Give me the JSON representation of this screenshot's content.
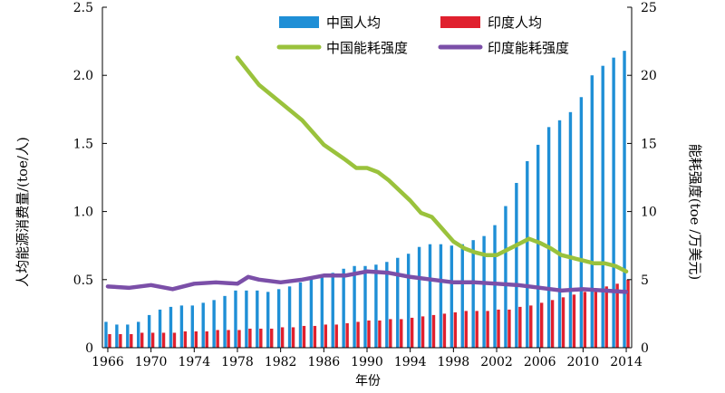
{
  "chart_data": {
    "type": "bar",
    "xlabel": "年份",
    "ylabel_left": "人均能源消费量/(toe/人)",
    "ylabel_right": "能耗强度(toe /万美元)",
    "ylim_left": [
      0,
      2.5
    ],
    "ylim_right": [
      0,
      25
    ],
    "yticks_left": [
      "0",
      "0.5",
      "1.0",
      "1.5",
      "2.0",
      "2.5"
    ],
    "yticks_right": [
      "0",
      "5",
      "10",
      "15",
      "20",
      "25"
    ],
    "xticks": [
      "1966",
      "1970",
      "1974",
      "1978",
      "1982",
      "1986",
      "1990",
      "1994",
      "1998",
      "2002",
      "2006",
      "2010",
      "2014"
    ],
    "xrange": [
      1966,
      2014
    ],
    "legend_position": "top",
    "grid": false,
    "bar_series": [
      {
        "name": "中国人均",
        "color": "#1f8fd6",
        "axis": "left",
        "x": [
          1966,
          1967,
          1968,
          1969,
          1970,
          1971,
          1972,
          1973,
          1974,
          1975,
          1976,
          1977,
          1978,
          1979,
          1980,
          1981,
          1982,
          1983,
          1984,
          1985,
          1986,
          1987,
          1988,
          1989,
          1990,
          1991,
          1992,
          1993,
          1994,
          1995,
          1996,
          1997,
          1998,
          1999,
          2000,
          2001,
          2002,
          2003,
          2004,
          2005,
          2006,
          2007,
          2008,
          2009,
          2010,
          2011,
          2012,
          2013,
          2014
        ],
        "values": [
          0.19,
          0.17,
          0.17,
          0.19,
          0.24,
          0.28,
          0.3,
          0.31,
          0.31,
          0.33,
          0.35,
          0.38,
          0.42,
          0.42,
          0.42,
          0.41,
          0.43,
          0.45,
          0.48,
          0.5,
          0.52,
          0.55,
          0.58,
          0.6,
          0.6,
          0.61,
          0.63,
          0.66,
          0.69,
          0.74,
          0.76,
          0.76,
          0.75,
          0.76,
          0.79,
          0.82,
          0.9,
          1.04,
          1.21,
          1.37,
          1.49,
          1.62,
          1.67,
          1.73,
          1.84,
          2.0,
          2.07,
          2.13,
          2.18
        ]
      },
      {
        "name": "印度人均",
        "color": "#e0202e",
        "axis": "left",
        "x": [
          1966,
          1967,
          1968,
          1969,
          1970,
          1971,
          1972,
          1973,
          1974,
          1975,
          1976,
          1977,
          1978,
          1979,
          1980,
          1981,
          1982,
          1983,
          1984,
          1985,
          1986,
          1987,
          1988,
          1989,
          1990,
          1991,
          1992,
          1993,
          1994,
          1995,
          1996,
          1997,
          1998,
          1999,
          2000,
          2001,
          2002,
          2003,
          2004,
          2005,
          2006,
          2007,
          2008,
          2009,
          2010,
          2011,
          2012,
          2013,
          2014
        ],
        "values": [
          0.1,
          0.1,
          0.1,
          0.11,
          0.11,
          0.11,
          0.11,
          0.12,
          0.12,
          0.12,
          0.13,
          0.13,
          0.13,
          0.14,
          0.14,
          0.14,
          0.15,
          0.15,
          0.16,
          0.16,
          0.17,
          0.17,
          0.18,
          0.19,
          0.2,
          0.2,
          0.21,
          0.21,
          0.22,
          0.23,
          0.24,
          0.25,
          0.26,
          0.27,
          0.27,
          0.27,
          0.28,
          0.28,
          0.3,
          0.31,
          0.33,
          0.35,
          0.37,
          0.39,
          0.41,
          0.43,
          0.45,
          0.47,
          0.5
        ]
      }
    ],
    "line_series": [
      {
        "name": "中国能耗强度",
        "color": "#9ac23c",
        "axis": "right",
        "x": [
          1978,
          1980,
          1982,
          1984,
          1986,
          1988,
          1989,
          1990,
          1991,
          1992,
          1994,
          1995,
          1996,
          1997,
          1998,
          1999,
          2000,
          2001,
          2002,
          2003,
          2004,
          2005,
          2006,
          2007,
          2008,
          2009,
          2010,
          2011,
          2012,
          2013,
          2014
        ],
        "values": [
          21.3,
          19.3,
          18.0,
          16.7,
          14.9,
          13.8,
          13.2,
          13.2,
          12.9,
          12.3,
          10.8,
          9.9,
          9.6,
          8.7,
          7.8,
          7.3,
          7.0,
          6.8,
          6.8,
          7.2,
          7.6,
          8.0,
          7.7,
          7.3,
          6.8,
          6.6,
          6.4,
          6.2,
          6.2,
          6.0,
          5.6
        ]
      },
      {
        "name": "印度能耗强度",
        "color": "#7b4fa8",
        "axis": "right",
        "x": [
          1966,
          1968,
          1970,
          1972,
          1974,
          1976,
          1978,
          1979,
          1980,
          1982,
          1984,
          1986,
          1988,
          1990,
          1992,
          1994,
          1996,
          1998,
          2000,
          2002,
          2004,
          2006,
          2008,
          2010,
          2012,
          2014
        ],
        "values": [
          4.5,
          4.4,
          4.6,
          4.3,
          4.7,
          4.8,
          4.7,
          5.2,
          5.0,
          4.8,
          5.0,
          5.3,
          5.3,
          5.6,
          5.5,
          5.2,
          5.0,
          4.8,
          4.8,
          4.7,
          4.6,
          4.4,
          4.2,
          4.3,
          4.2,
          4.1
        ]
      }
    ]
  }
}
